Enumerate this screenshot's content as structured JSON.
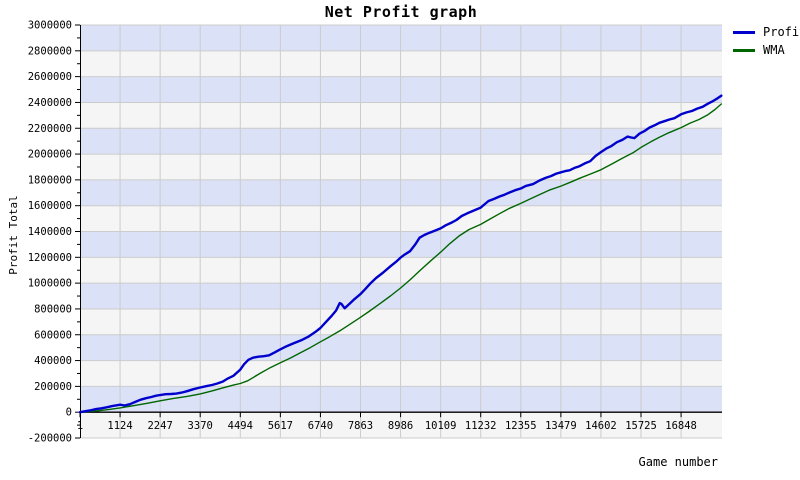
{
  "chart_data": {
    "type": "line",
    "title": "Net Profit graph",
    "xlabel": "Game number",
    "ylabel": "Profit Total",
    "xlim": [
      1,
      17995
    ],
    "ylim": [
      -200000,
      3000000
    ],
    "y_major_step": 200000,
    "y_minor_step": 100000,
    "y_ticks": [
      -200000,
      0,
      200000,
      400000,
      600000,
      800000,
      1000000,
      1200000,
      1400000,
      1600000,
      1800000,
      2000000,
      2200000,
      2400000,
      2600000,
      2800000,
      3000000
    ],
    "x_ticks": [
      1,
      1124,
      2247,
      3370,
      4494,
      5617,
      6740,
      7863,
      8986,
      10109,
      11232,
      12355,
      13479,
      14602,
      15725,
      16848
    ],
    "grid": true,
    "legend_position": "top-right",
    "colors": {
      "background": "#ffffff",
      "band_light": "#f5f5f5",
      "band_lavender": "#dbe1f7",
      "gridline": "#cccccc",
      "axis": "#000000",
      "text": "#000000"
    },
    "series": [
      {
        "name": "Profit",
        "color": "#0000cc",
        "width": 2.4,
        "points": [
          [
            1,
            0
          ],
          [
            150,
            8000
          ],
          [
            300,
            15000
          ],
          [
            450,
            24000
          ],
          [
            600,
            30000
          ],
          [
            750,
            38000
          ],
          [
            900,
            47000
          ],
          [
            1050,
            54000
          ],
          [
            1124,
            58000
          ],
          [
            1250,
            52000
          ],
          [
            1400,
            62000
          ],
          [
            1550,
            80000
          ],
          [
            1700,
            97000
          ],
          [
            1850,
            108000
          ],
          [
            2000,
            118000
          ],
          [
            2120,
            127000
          ],
          [
            2247,
            133000
          ],
          [
            2400,
            139000
          ],
          [
            2550,
            141000
          ],
          [
            2700,
            144000
          ],
          [
            2850,
            152000
          ],
          [
            3000,
            163000
          ],
          [
            3180,
            178000
          ],
          [
            3370,
            191000
          ],
          [
            3550,
            202000
          ],
          [
            3700,
            211000
          ],
          [
            3850,
            222000
          ],
          [
            4000,
            237000
          ],
          [
            4150,
            262000
          ],
          [
            4300,
            282000
          ],
          [
            4494,
            330000
          ],
          [
            4600,
            372000
          ],
          [
            4720,
            406000
          ],
          [
            4850,
            422000
          ],
          [
            5000,
            430000
          ],
          [
            5150,
            434000
          ],
          [
            5300,
            441000
          ],
          [
            5450,
            462000
          ],
          [
            5617,
            487000
          ],
          [
            5800,
            512000
          ],
          [
            6000,
            535000
          ],
          [
            6200,
            557000
          ],
          [
            6400,
            585000
          ],
          [
            6600,
            622000
          ],
          [
            6740,
            652000
          ],
          [
            6900,
            700000
          ],
          [
            7050,
            745000
          ],
          [
            7180,
            788000
          ],
          [
            7280,
            845000
          ],
          [
            7330,
            838000
          ],
          [
            7420,
            805000
          ],
          [
            7550,
            838000
          ],
          [
            7700,
            878000
          ],
          [
            7863,
            915000
          ],
          [
            8000,
            955000
          ],
          [
            8150,
            1000000
          ],
          [
            8300,
            1040000
          ],
          [
            8500,
            1082000
          ],
          [
            8700,
            1130000
          ],
          [
            8850,
            1163000
          ],
          [
            8986,
            1198000
          ],
          [
            9100,
            1221000
          ],
          [
            9250,
            1247000
          ],
          [
            9400,
            1300000
          ],
          [
            9520,
            1352000
          ],
          [
            9650,
            1373000
          ],
          [
            9800,
            1391000
          ],
          [
            9950,
            1407000
          ],
          [
            10109,
            1424000
          ],
          [
            10250,
            1448000
          ],
          [
            10400,
            1467000
          ],
          [
            10550,
            1489000
          ],
          [
            10700,
            1520000
          ],
          [
            10850,
            1540000
          ],
          [
            11000,
            1558000
          ],
          [
            11232,
            1585000
          ],
          [
            11450,
            1636000
          ],
          [
            11600,
            1652000
          ],
          [
            11760,
            1671000
          ],
          [
            11900,
            1685000
          ],
          [
            12040,
            1702000
          ],
          [
            12200,
            1720000
          ],
          [
            12355,
            1733000
          ],
          [
            12500,
            1753000
          ],
          [
            12700,
            1767000
          ],
          [
            12880,
            1795000
          ],
          [
            13050,
            1815000
          ],
          [
            13200,
            1829000
          ],
          [
            13350,
            1849000
          ],
          [
            13479,
            1859000
          ],
          [
            13600,
            1868000
          ],
          [
            13720,
            1874000
          ],
          [
            13860,
            1893000
          ],
          [
            14000,
            1906000
          ],
          [
            14150,
            1928000
          ],
          [
            14300,
            1945000
          ],
          [
            14450,
            1985000
          ],
          [
            14602,
            2015000
          ],
          [
            14750,
            2042000
          ],
          [
            14900,
            2063000
          ],
          [
            15050,
            2092000
          ],
          [
            15200,
            2110000
          ],
          [
            15345,
            2135000
          ],
          [
            15450,
            2128000
          ],
          [
            15540,
            2124000
          ],
          [
            15680,
            2158000
          ],
          [
            15820,
            2178000
          ],
          [
            15960,
            2205000
          ],
          [
            16100,
            2222000
          ],
          [
            16240,
            2242000
          ],
          [
            16380,
            2255000
          ],
          [
            16520,
            2268000
          ],
          [
            16660,
            2278000
          ],
          [
            16848,
            2308000
          ],
          [
            17000,
            2323000
          ],
          [
            17150,
            2334000
          ],
          [
            17300,
            2352000
          ],
          [
            17450,
            2366000
          ],
          [
            17600,
            2390000
          ],
          [
            17750,
            2412000
          ],
          [
            17870,
            2432000
          ],
          [
            17975,
            2452000
          ]
        ]
      },
      {
        "name": "WMA",
        "color": "#006600",
        "width": 1.4,
        "points": [
          [
            1,
            0
          ],
          [
            400,
            8000
          ],
          [
            800,
            20000
          ],
          [
            1124,
            33000
          ],
          [
            1500,
            50000
          ],
          [
            1900,
            70000
          ],
          [
            2247,
            88000
          ],
          [
            2600,
            105000
          ],
          [
            3000,
            122000
          ],
          [
            3370,
            142000
          ],
          [
            3700,
            165000
          ],
          [
            4000,
            188000
          ],
          [
            4300,
            210000
          ],
          [
            4494,
            222000
          ],
          [
            4700,
            243000
          ],
          [
            5040,
            300000
          ],
          [
            5300,
            340000
          ],
          [
            5617,
            383000
          ],
          [
            5900,
            420000
          ],
          [
            6160,
            458000
          ],
          [
            6450,
            500000
          ],
          [
            6740,
            545000
          ],
          [
            7000,
            585000
          ],
          [
            7280,
            630000
          ],
          [
            7560,
            680000
          ],
          [
            7863,
            735000
          ],
          [
            8100,
            780000
          ],
          [
            8400,
            840000
          ],
          [
            8700,
            900000
          ],
          [
            8986,
            962000
          ],
          [
            9250,
            1025000
          ],
          [
            9520,
            1095000
          ],
          [
            9800,
            1165000
          ],
          [
            10109,
            1240000
          ],
          [
            10360,
            1305000
          ],
          [
            10640,
            1368000
          ],
          [
            10900,
            1415000
          ],
          [
            11232,
            1455000
          ],
          [
            11500,
            1498000
          ],
          [
            11760,
            1538000
          ],
          [
            12040,
            1580000
          ],
          [
            12355,
            1618000
          ],
          [
            12600,
            1650000
          ],
          [
            12880,
            1686000
          ],
          [
            13150,
            1720000
          ],
          [
            13479,
            1752000
          ],
          [
            13750,
            1782000
          ],
          [
            14000,
            1812000
          ],
          [
            14300,
            1845000
          ],
          [
            14602,
            1878000
          ],
          [
            14900,
            1922000
          ],
          [
            15200,
            1968000
          ],
          [
            15500,
            2010000
          ],
          [
            15725,
            2052000
          ],
          [
            16000,
            2095000
          ],
          [
            16240,
            2130000
          ],
          [
            16500,
            2165000
          ],
          [
            16848,
            2205000
          ],
          [
            17100,
            2240000
          ],
          [
            17350,
            2268000
          ],
          [
            17600,
            2305000
          ],
          [
            17800,
            2345000
          ],
          [
            17975,
            2388000
          ]
        ]
      }
    ]
  }
}
